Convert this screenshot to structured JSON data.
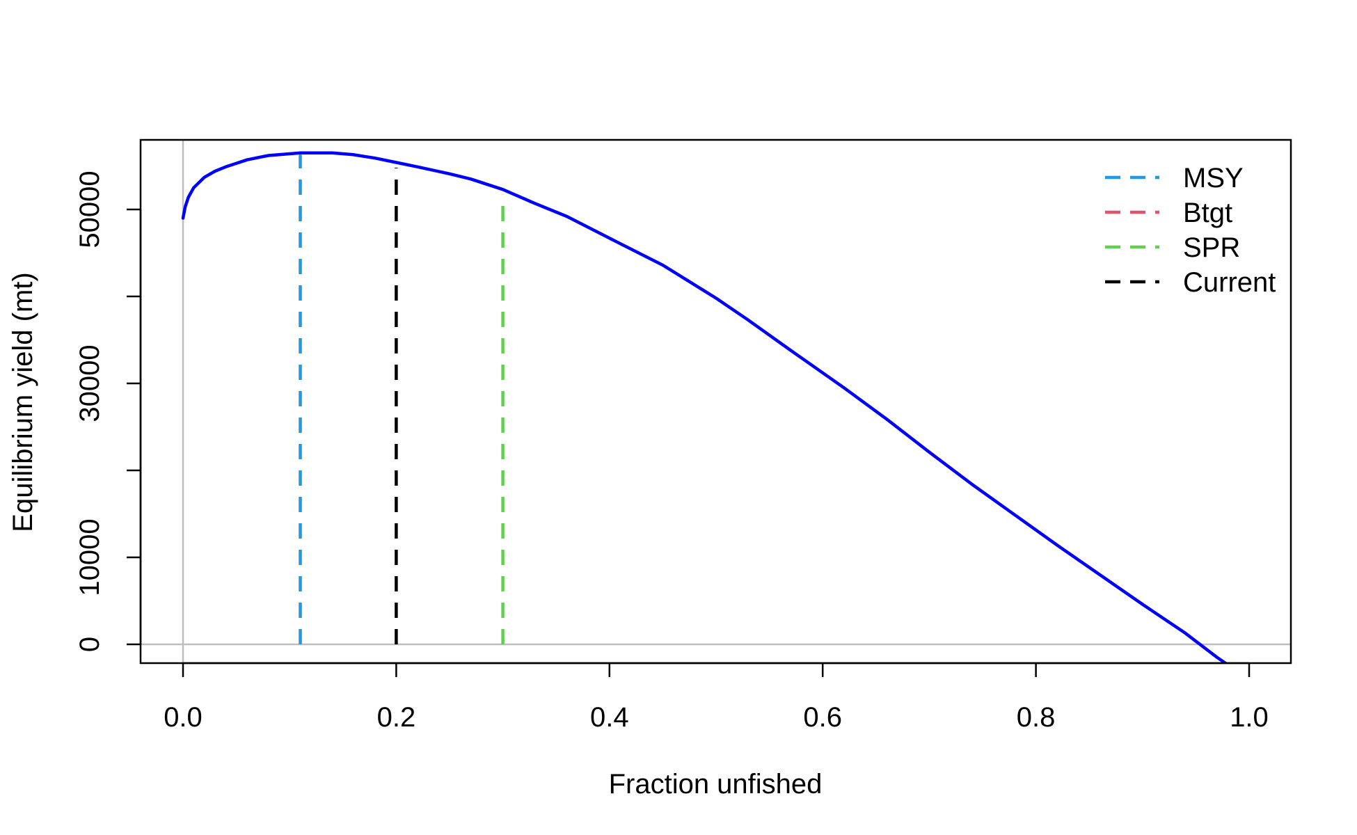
{
  "chart_data": {
    "type": "line",
    "title": "",
    "xlabel": "Fraction unfished",
    "ylabel": "Equilibrium yield (mt)",
    "xlim": [
      0,
      1
    ],
    "ylim": [
      0,
      57000
    ],
    "x_ticks": [
      {
        "value": 0.0,
        "label": "0.0"
      },
      {
        "value": 0.2,
        "label": "0.2"
      },
      {
        "value": 0.4,
        "label": "0.4"
      },
      {
        "value": 0.6,
        "label": "0.6"
      },
      {
        "value": 0.8,
        "label": "0.8"
      },
      {
        "value": 1.0,
        "label": "1.0"
      }
    ],
    "y_ticks": [
      {
        "value": 0,
        "label": "0"
      },
      {
        "value": 10000,
        "label": "10000"
      },
      {
        "value": 20000,
        "label": ""
      },
      {
        "value": 30000,
        "label": "30000"
      },
      {
        "value": 40000,
        "label": ""
      },
      {
        "value": 50000,
        "label": "50000"
      }
    ],
    "grid": false,
    "reference_lines": {
      "x": 0,
      "y": 0,
      "color": "#bebebe"
    },
    "curve": {
      "color": "#0000ff",
      "x": [
        0.0,
        0.002,
        0.005,
        0.01,
        0.02,
        0.03,
        0.04,
        0.05,
        0.06,
        0.08,
        0.1,
        0.11,
        0.12,
        0.14,
        0.16,
        0.18,
        0.2,
        0.22,
        0.25,
        0.27,
        0.3,
        0.33,
        0.36,
        0.4,
        0.45,
        0.5,
        0.53,
        0.57,
        0.62,
        0.66,
        0.7,
        0.74,
        0.78,
        0.82,
        0.86,
        0.9,
        0.94,
        0.97,
        0.99,
        1.0
      ],
      "y": [
        49000,
        50300,
        51400,
        52500,
        53700,
        54400,
        54900,
        55300,
        55700,
        56200,
        56400,
        56500,
        56500,
        56500,
        56300,
        55900,
        55400,
        54900,
        54100,
        53500,
        52300,
        50700,
        49200,
        46700,
        43600,
        39800,
        37300,
        33800,
        29500,
        25900,
        22100,
        18400,
        14900,
        11400,
        8000,
        4600,
        1300,
        -1500,
        -3200,
        -4100
      ]
    },
    "vlines": [
      {
        "name": "MSY",
        "x": 0.11,
        "y": 56300,
        "color": "#2297e6"
      },
      {
        "name": "SPR",
        "x": 0.3,
        "y": 51700,
        "color": "#61d04f"
      },
      {
        "name": "Current",
        "x": 0.2,
        "y": 54800,
        "color": "#000000"
      }
    ],
    "legend": {
      "position": "top-right",
      "entries": [
        {
          "name": "MSY",
          "color": "#2297e6"
        },
        {
          "name": "Btgt",
          "color": "#df536b"
        },
        {
          "name": "SPR",
          "color": "#61d04f"
        },
        {
          "name": "Current",
          "color": "#000000"
        }
      ]
    }
  }
}
